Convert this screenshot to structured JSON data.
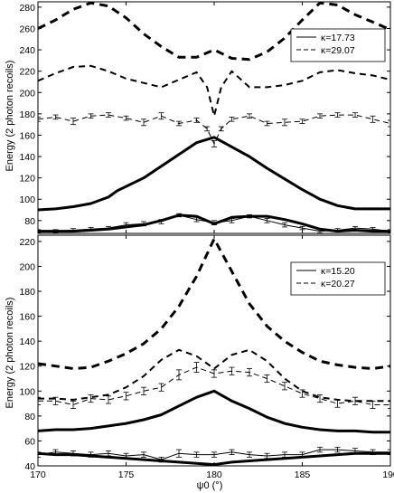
{
  "chart_data": [
    {
      "type": "line",
      "xlim": [
        170,
        190
      ],
      "ylim": [
        68,
        285
      ],
      "y_ticks": [
        80,
        100,
        120,
        140,
        160,
        180,
        200,
        220,
        240,
        260,
        280
      ],
      "x_ticks": [
        170,
        175,
        180,
        185,
        190
      ],
      "xlabel": "",
      "ylabel": "Energy (2 photon recoils)",
      "grid": false,
      "legend_position": "top-right",
      "legend": [
        {
          "label": "κ=17.73",
          "style": "solid"
        },
        {
          "label": "κ=29.07",
          "style": "dashed"
        }
      ],
      "series": [
        {
          "style": "dashed",
          "width": 3,
          "x": [
            170,
            171,
            172,
            173,
            174,
            175,
            176,
            177,
            178,
            179,
            180,
            181,
            182,
            183,
            184,
            185,
            186,
            187,
            188,
            189,
            190
          ],
          "y": [
            260,
            268,
            278,
            284,
            281,
            270,
            255,
            243,
            233,
            233,
            240,
            232,
            231,
            238,
            251,
            268,
            284,
            282,
            273,
            266,
            259
          ]
        },
        {
          "style": "dashed",
          "width": 2,
          "x": [
            170,
            171,
            172,
            173,
            174,
            175,
            176,
            177,
            178,
            179,
            179.6,
            180,
            180.4,
            181,
            182,
            183,
            184,
            185,
            186,
            187,
            188,
            189,
            190
          ],
          "y": [
            211,
            218,
            224,
            225,
            220,
            213,
            209,
            205,
            212,
            219,
            205,
            178,
            205,
            220,
            205,
            205,
            207,
            211,
            219,
            221,
            218,
            216,
            212
          ]
        },
        {
          "style": "dashed",
          "width": 1,
          "error_bars": true,
          "x": [
            170,
            171,
            172,
            173,
            174,
            175,
            176,
            177,
            178,
            179,
            179.6,
            180,
            180.4,
            181,
            182,
            183,
            184,
            185,
            186,
            187,
            188,
            189,
            190
          ],
          "y": [
            175,
            177,
            173,
            178,
            179,
            176,
            172,
            178,
            171,
            174,
            166,
            152,
            166,
            175,
            178,
            171,
            172,
            173,
            178,
            179,
            179,
            175,
            171
          ],
          "err": [
            2,
            2,
            3,
            2,
            2,
            2,
            3,
            3,
            2,
            2,
            2,
            3,
            2,
            2,
            2,
            2,
            3,
            2,
            2,
            2,
            2,
            3,
            3
          ]
        },
        {
          "style": "solid",
          "width": 3,
          "x": [
            170,
            171,
            172,
            173,
            174,
            174.5,
            175,
            176,
            177,
            178,
            179,
            180,
            181,
            182,
            183,
            184,
            185,
            186,
            187,
            188,
            189,
            190
          ],
          "y": [
            90,
            91,
            93,
            96,
            102,
            108,
            112,
            120,
            131,
            142,
            153,
            158,
            149,
            140,
            129,
            119,
            109,
            100,
            94,
            91,
            91,
            91
          ]
        },
        {
          "style": "solid",
          "width": 3,
          "x": [
            170,
            171,
            172,
            173,
            174,
            175,
            176,
            177,
            178,
            179,
            180,
            181,
            182,
            183,
            184,
            185,
            186,
            187,
            188,
            189,
            190
          ],
          "y": [
            70,
            70,
            70,
            71,
            72,
            74,
            76,
            80,
            85,
            84,
            77,
            83,
            84,
            84,
            81,
            77,
            72,
            70,
            71,
            70,
            70
          ]
        },
        {
          "style": "solid",
          "width": 1,
          "error_bars": true,
          "x": [
            170,
            171,
            172,
            173,
            174,
            175,
            176,
            177,
            178,
            179,
            180,
            181,
            182,
            183,
            184,
            185,
            186,
            187,
            188,
            189,
            190
          ],
          "y": [
            70,
            70,
            71,
            72,
            73,
            76,
            77,
            79,
            85,
            81,
            78,
            80,
            84,
            80,
            76,
            73,
            70,
            71,
            73,
            72,
            70
          ],
          "err": [
            1.5,
            1.5,
            1.5,
            1.5,
            1.5,
            2,
            2,
            2,
            1.5,
            2,
            2,
            2,
            1.5,
            2,
            2,
            1.5,
            1.5,
            1.5,
            1.5,
            1.5,
            1.5
          ]
        }
      ]
    },
    {
      "type": "line",
      "xlim": [
        170,
        190
      ],
      "ylim": [
        40,
        225
      ],
      "y_ticks": [
        40,
        60,
        80,
        100,
        120,
        140,
        160,
        180,
        200,
        220
      ],
      "x_ticks": [
        170,
        175,
        180,
        185,
        190
      ],
      "x_tick_labels": [
        "170",
        "175",
        "180",
        "185",
        "190"
      ],
      "xlabel": "ψ0 (°)",
      "ylabel": "Energy (2 photon recoils)",
      "grid": false,
      "legend_position": "top-right",
      "legend": [
        {
          "label": "κ=15.20",
          "style": "solid"
        },
        {
          "label": "κ=20.27",
          "style": "dashed"
        }
      ],
      "series": [
        {
          "style": "dashed",
          "width": 3,
          "x": [
            170,
            171,
            172,
            173,
            174,
            175,
            176,
            177,
            178,
            179,
            180,
            181,
            182,
            183,
            184,
            185,
            186,
            187,
            188,
            189,
            190
          ],
          "y": [
            122,
            120,
            118,
            119,
            124,
            130,
            138,
            150,
            168,
            192,
            222,
            196,
            170,
            152,
            140,
            131,
            124,
            121,
            119,
            118,
            120
          ]
        },
        {
          "style": "dashed",
          "width": 2,
          "x": [
            170,
            171,
            172,
            173,
            174,
            175,
            176,
            177,
            178,
            179,
            180,
            181,
            182,
            183,
            184,
            185,
            186,
            187,
            188,
            189,
            190
          ],
          "y": [
            94,
            94,
            93,
            95,
            97,
            103,
            112,
            125,
            133,
            128,
            118,
            129,
            133,
            124,
            110,
            100,
            95,
            93,
            92,
            92,
            92
          ]
        },
        {
          "style": "dashed",
          "width": 1,
          "error_bars": true,
          "x": [
            170,
            171,
            172,
            173,
            174,
            175,
            176,
            177,
            178,
            179,
            180,
            181,
            182,
            183,
            184,
            185,
            186,
            187,
            188,
            189,
            190
          ],
          "y": [
            92,
            92,
            89,
            94,
            93,
            96,
            100,
            103,
            113,
            119,
            114,
            116,
            115,
            110,
            104,
            98,
            94,
            90,
            92,
            89,
            89
          ],
          "err": [
            3,
            3,
            3,
            3,
            3,
            3,
            3,
            3,
            4,
            4,
            3,
            3,
            3,
            3,
            3,
            3,
            3,
            3,
            3,
            3,
            3
          ]
        },
        {
          "style": "solid",
          "width": 3,
          "x": [
            170,
            171,
            172,
            173,
            174,
            175,
            176,
            177,
            178,
            179,
            180,
            181,
            182,
            183,
            184,
            185,
            186,
            187,
            188,
            189,
            190
          ],
          "y": [
            68,
            69,
            69,
            70,
            72,
            74,
            77,
            81,
            88,
            95,
            100,
            92,
            86,
            79,
            74,
            71,
            69,
            68,
            68,
            67,
            67
          ]
        },
        {
          "style": "solid",
          "width": 3,
          "x": [
            170,
            171,
            172,
            173,
            174,
            175,
            176,
            177,
            178,
            179,
            180,
            181,
            182,
            183,
            184,
            185,
            186,
            187,
            188,
            189,
            190
          ],
          "y": [
            50,
            49,
            49,
            48,
            47,
            46,
            45,
            44,
            43,
            42,
            41,
            43,
            44,
            45,
            46,
            47,
            48,
            49,
            50,
            50,
            50
          ]
        },
        {
          "style": "solid",
          "width": 1,
          "error_bars": true,
          "x": [
            170,
            171,
            172,
            173,
            174,
            175,
            176,
            177,
            178,
            179,
            180,
            181,
            182,
            183,
            184,
            185,
            186,
            187,
            188,
            189,
            190
          ],
          "y": [
            49,
            51,
            50,
            49,
            50,
            48,
            49,
            45,
            50,
            49,
            49,
            51,
            49,
            48,
            49,
            49,
            53,
            53,
            52,
            51,
            51
          ],
          "err": [
            2,
            2,
            2,
            2,
            2,
            2,
            2,
            2,
            3,
            2,
            2,
            2,
            2,
            2,
            2,
            2,
            2,
            2,
            2,
            2,
            2
          ]
        }
      ]
    }
  ]
}
